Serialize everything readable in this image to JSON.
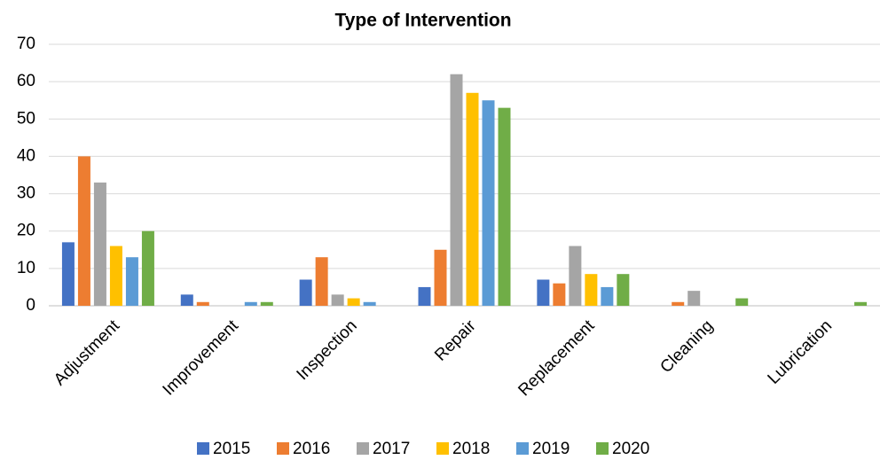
{
  "chart_data": {
    "type": "bar",
    "title": "Type of Intervention",
    "categories": [
      "Adjustment",
      "Improvement",
      "Inspection",
      "Repair",
      "Replacement",
      "Cleaning",
      "Lubrication"
    ],
    "series": [
      {
        "name": "2015",
        "color": "#4472c4",
        "values": [
          17,
          3,
          7,
          5,
          7,
          0,
          0
        ]
      },
      {
        "name": "2016",
        "color": "#ed7d31",
        "values": [
          40,
          1,
          13,
          15,
          6,
          1,
          0
        ]
      },
      {
        "name": "2017",
        "color": "#a5a5a5",
        "values": [
          33,
          0,
          3,
          62,
          16,
          4,
          0
        ]
      },
      {
        "name": "2018",
        "color": "#ffc000",
        "values": [
          16,
          0,
          2,
          57,
          8.5,
          0,
          0
        ]
      },
      {
        "name": "2019",
        "color": "#5b9bd5",
        "values": [
          13,
          1,
          1,
          55,
          5,
          0,
          0
        ]
      },
      {
        "name": "2020",
        "color": "#70ad47",
        "values": [
          20,
          1,
          0,
          53,
          8.5,
          2,
          1
        ]
      }
    ],
    "ylim": [
      0,
      70
    ],
    "yticks": [
      0,
      10,
      20,
      30,
      40,
      50,
      60,
      70
    ],
    "grid": true,
    "legend": "bottom"
  }
}
